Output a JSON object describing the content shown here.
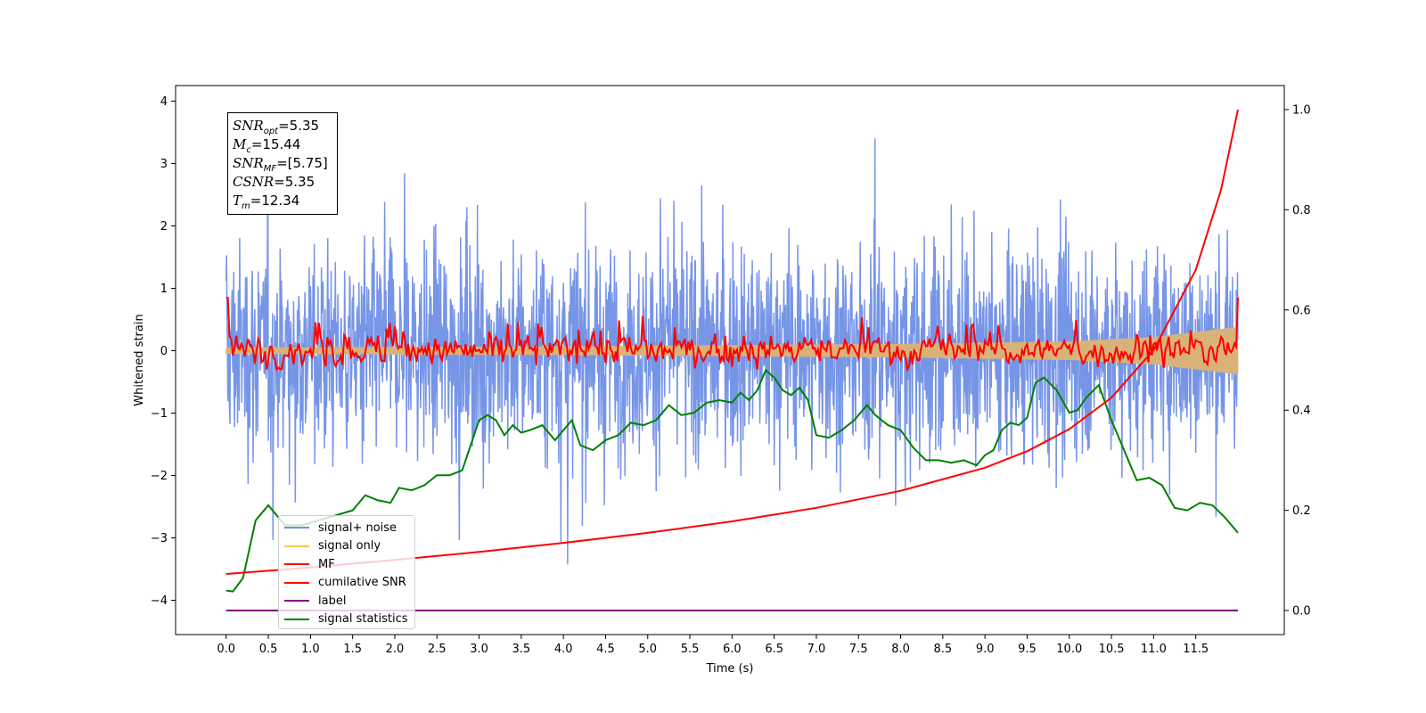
{
  "chart_data": {
    "type": "line",
    "xlabel": "Time (s)",
    "ylabel": "Whitened strain",
    "xlim": [
      -0.6,
      12.55
    ],
    "ylim": [
      -4.55,
      4.25
    ],
    "y2lim": [
      -0.048,
      1.048
    ],
    "xticks": [
      "0.0",
      "0.5",
      "1.0",
      "1.5",
      "2.0",
      "2.5",
      "3.0",
      "3.5",
      "4.0",
      "4.5",
      "5.0",
      "5.5",
      "6.0",
      "6.5",
      "7.0",
      "7.5",
      "8.0",
      "8.5",
      "9.0",
      "9.5",
      "10.0",
      "10.5",
      "11.0",
      "11.5"
    ],
    "yticks": [
      "4",
      "3",
      "2",
      "1",
      "0",
      "−1",
      "−2",
      "−3",
      "−4"
    ],
    "y2ticks": [
      "1.0",
      "0.8",
      "0.6",
      "0.4",
      "0.2",
      "0.0"
    ],
    "grid": false,
    "legend_placement": "lower-left",
    "legend": [
      {
        "label": "signal+ noise",
        "color": "#6f8fe6"
      },
      {
        "label": "signal only",
        "color": "#f5c85a"
      },
      {
        "label": "MF",
        "color": "#ff0000"
      },
      {
        "label": "cumilative SNR",
        "color": "#ff0000"
      },
      {
        "label": "label",
        "color": "#800080"
      },
      {
        "label": "signal statistics",
        "color": "#008000"
      }
    ],
    "annotation": {
      "snr_opt": "=5.35",
      "mc": "=15.44",
      "snr_mf": "=[5.75]",
      "csnr": "=5.35",
      "tm": "=12.34"
    },
    "series": [
      {
        "name": "signal+ noise",
        "axis": "left",
        "color": "#6f8fe6",
        "x_range": [
          0.0,
          12.0
        ],
        "amplitude_range": [
          -4.15,
          3.87
        ]
      },
      {
        "name": "signal only",
        "axis": "left",
        "color": "#d9b27a",
        "x": [
          0,
          2,
          4,
          6,
          8,
          10,
          11,
          11.5,
          12.0
        ],
        "envelope": [
          0.05,
          0.06,
          0.07,
          0.09,
          0.11,
          0.15,
          0.22,
          0.3,
          0.38
        ]
      },
      {
        "name": "MF",
        "axis": "left",
        "color": "#ff0000",
        "x_range": [
          0.0,
          12.0
        ],
        "approx_range": [
          -0.3,
          0.85
        ]
      },
      {
        "name": "cumilative SNR",
        "axis": "right",
        "color": "#ff0000",
        "x": [
          0.0,
          1.0,
          2.0,
          3.0,
          4.0,
          5.0,
          6.0,
          7.0,
          8.0,
          9.0,
          9.5,
          10.0,
          10.5,
          11.0,
          11.5,
          11.8,
          12.0
        ],
        "y": [
          0.073,
          0.086,
          0.101,
          0.117,
          0.135,
          0.155,
          0.178,
          0.205,
          0.239,
          0.285,
          0.318,
          0.362,
          0.425,
          0.52,
          0.68,
          0.84,
          1.0
        ]
      },
      {
        "name": "label",
        "axis": "right",
        "color": "#800080",
        "x": [
          0.0,
          12.0
        ],
        "y": [
          0.0,
          0.0
        ]
      },
      {
        "name": "signal statistics",
        "axis": "right",
        "color": "#008000",
        "x": [
          0.0,
          0.08,
          0.2,
          0.35,
          0.5,
          0.7,
          0.9,
          1.1,
          1.3,
          1.5,
          1.65,
          1.8,
          1.95,
          2.05,
          2.2,
          2.35,
          2.5,
          2.65,
          2.8,
          2.9,
          3.0,
          3.1,
          3.2,
          3.3,
          3.4,
          3.5,
          3.6,
          3.75,
          3.9,
          4.0,
          4.1,
          4.2,
          4.35,
          4.5,
          4.65,
          4.8,
          4.95,
          5.1,
          5.25,
          5.4,
          5.55,
          5.7,
          5.85,
          6.0,
          6.1,
          6.2,
          6.3,
          6.4,
          6.5,
          6.6,
          6.7,
          6.8,
          6.9,
          7.0,
          7.15,
          7.3,
          7.45,
          7.6,
          7.7,
          7.85,
          8.0,
          8.15,
          8.3,
          8.45,
          8.6,
          8.75,
          8.9,
          9.0,
          9.1,
          9.2,
          9.3,
          9.4,
          9.5,
          9.6,
          9.7,
          9.85,
          10.0,
          10.1,
          10.2,
          10.35,
          10.5,
          10.65,
          10.8,
          10.95,
          11.1,
          11.25,
          11.4,
          11.55,
          11.7,
          11.85,
          12.0
        ],
        "y": [
          0.04,
          0.038,
          0.065,
          0.18,
          0.21,
          0.17,
          0.17,
          0.18,
          0.19,
          0.2,
          0.23,
          0.22,
          0.215,
          0.245,
          0.24,
          0.25,
          0.27,
          0.27,
          0.28,
          0.33,
          0.38,
          0.39,
          0.38,
          0.35,
          0.37,
          0.355,
          0.36,
          0.37,
          0.34,
          0.36,
          0.38,
          0.33,
          0.32,
          0.34,
          0.35,
          0.375,
          0.37,
          0.38,
          0.41,
          0.39,
          0.395,
          0.415,
          0.42,
          0.415,
          0.435,
          0.42,
          0.44,
          0.48,
          0.465,
          0.44,
          0.43,
          0.445,
          0.42,
          0.35,
          0.345,
          0.36,
          0.38,
          0.41,
          0.39,
          0.37,
          0.36,
          0.325,
          0.3,
          0.3,
          0.295,
          0.3,
          0.29,
          0.31,
          0.32,
          0.36,
          0.375,
          0.37,
          0.385,
          0.455,
          0.465,
          0.44,
          0.395,
          0.4,
          0.425,
          0.45,
          0.38,
          0.32,
          0.26,
          0.265,
          0.25,
          0.205,
          0.2,
          0.215,
          0.21,
          0.185,
          0.155
        ]
      }
    ]
  }
}
